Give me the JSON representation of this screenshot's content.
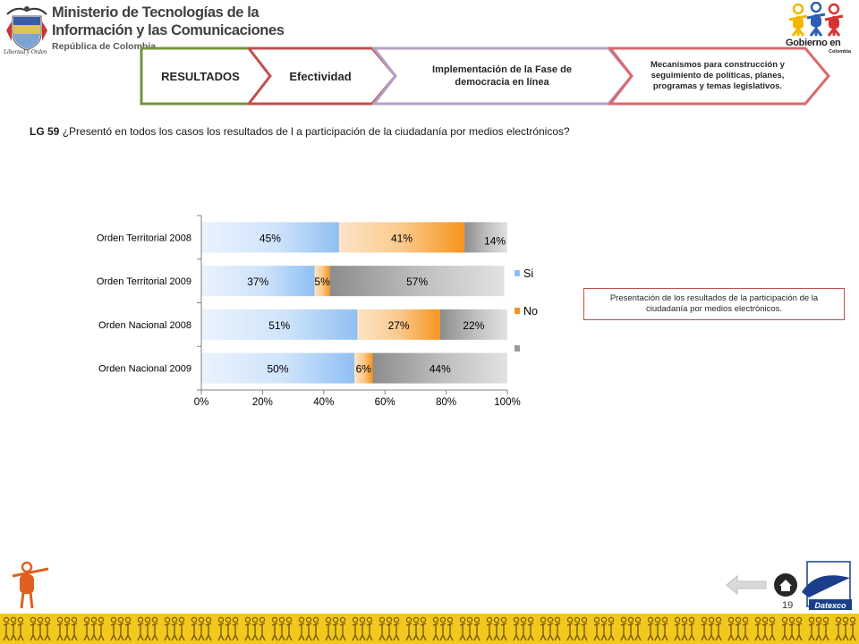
{
  "header": {
    "ministry_line1": "Ministerio de Tecnologías de la",
    "ministry_line2": "Información y las Comunicaciones",
    "ministry_line3": "República de Colombia",
    "shield_caption": "Libertad y Orden",
    "gov_logo_text": "Gobierno en línea",
    "gov_logo_sub": "Colombia"
  },
  "tabs": [
    {
      "label": "RESULTADOS",
      "border_color": "#77933c"
    },
    {
      "label": "Efectividad",
      "border_color": "#c0504d"
    },
    {
      "label": "Implementación de la Fase de democracia en línea",
      "border_color": "#b3a2c7"
    },
    {
      "label": "Mecanismos para construcción y seguimiento de políticas, planes, programas y temas legislativos.",
      "border_color": "#d9696b"
    }
  ],
  "question": {
    "number": "LG 59",
    "text": "¿Presentó en todos los casos los resultados de l a participación de la ciudadanía por medios electrónicos?"
  },
  "note": "Presentación de los resultados de la participación de la ciudadanía por medios electrónicos.",
  "page_number": "19",
  "colors": {
    "si": "#5b9bd5",
    "no": "#f79646",
    "other": "#808080",
    "strip": "#f2c81f"
  },
  "chart_data": {
    "type": "bar",
    "orientation": "horizontal",
    "stacked": true,
    "categories": [
      "Orden Territorial 2008",
      "Orden Territorial 2009",
      "Orden Nacional 2008",
      "Orden Nacional 2009"
    ],
    "series": [
      {
        "name": "Si",
        "values": [
          45,
          37,
          51,
          50
        ],
        "labels": [
          "45%",
          "37%",
          "51%",
          "50%"
        ]
      },
      {
        "name": "No",
        "values": [
          41,
          5,
          27,
          6
        ],
        "labels": [
          "41%",
          "5%",
          "27%",
          "6%"
        ]
      },
      {
        "name": "",
        "values": [
          14,
          57,
          22,
          44
        ],
        "labels": [
          "14%",
          "57%",
          "22%",
          "44%"
        ]
      }
    ],
    "xlim": [
      0,
      100
    ],
    "x_ticks": [
      "0%",
      "20%",
      "40%",
      "60%",
      "80%",
      "100%"
    ],
    "legend": [
      "Si",
      "No",
      ""
    ],
    "legend_position": "right"
  }
}
